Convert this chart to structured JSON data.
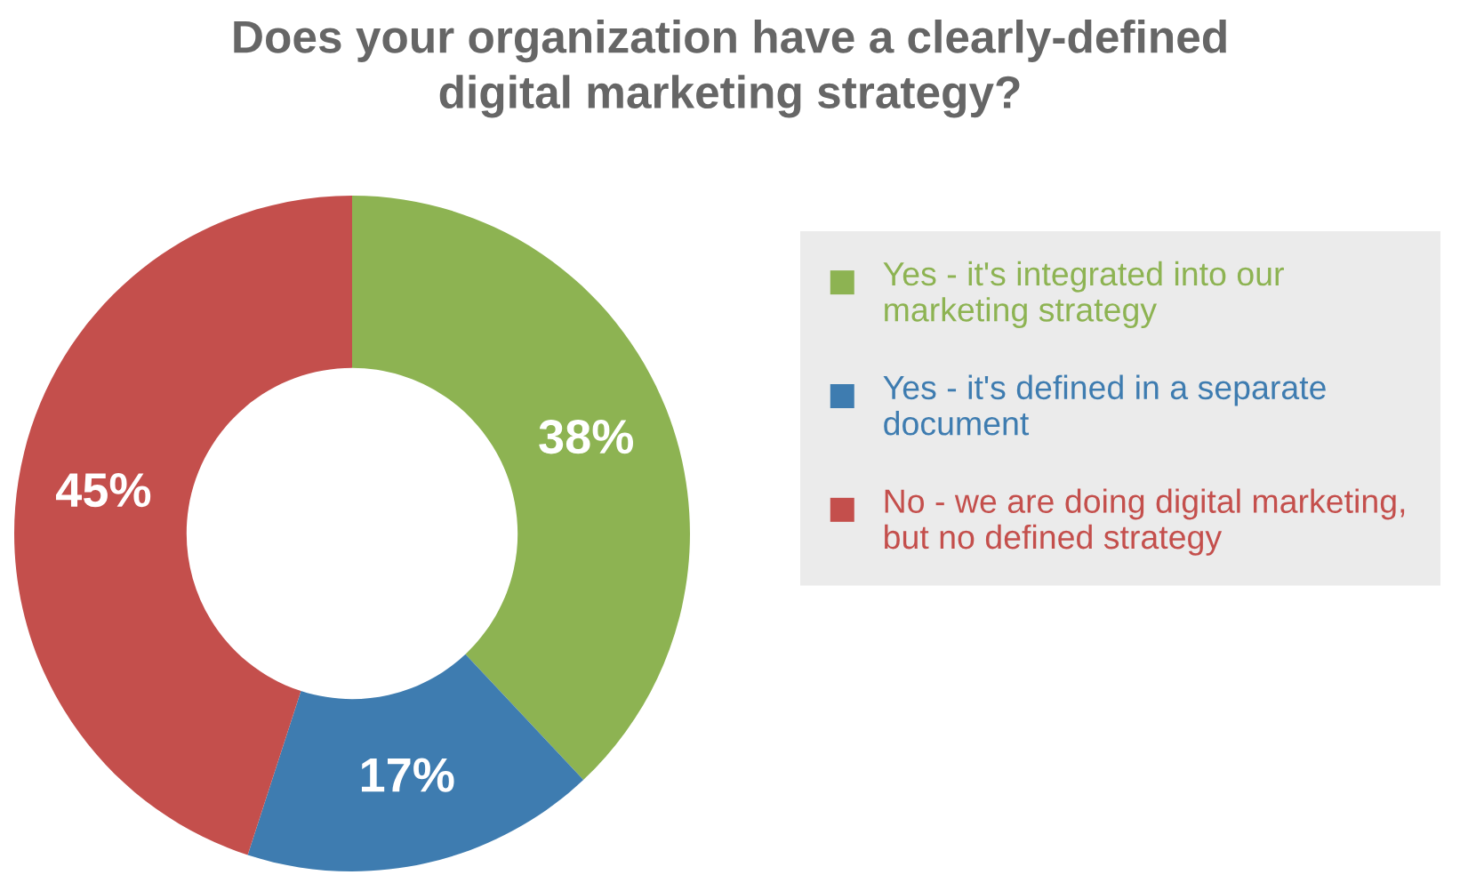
{
  "chart_data": {
    "type": "donut",
    "title": "Does your organization have a clearly-defined digital marketing strategy?",
    "categories": [
      "Yes - it's integrated into our marketing strategy",
      "Yes - it's defined in a separate document",
      "No - we are doing digital marketing, but no defined strategy"
    ],
    "values": [
      38,
      17,
      45
    ],
    "colors": [
      "#8db352",
      "#3e7cb0",
      "#c44f4c"
    ],
    "value_labels": [
      "38%",
      "17%",
      "45%"
    ],
    "legend": "right"
  }
}
